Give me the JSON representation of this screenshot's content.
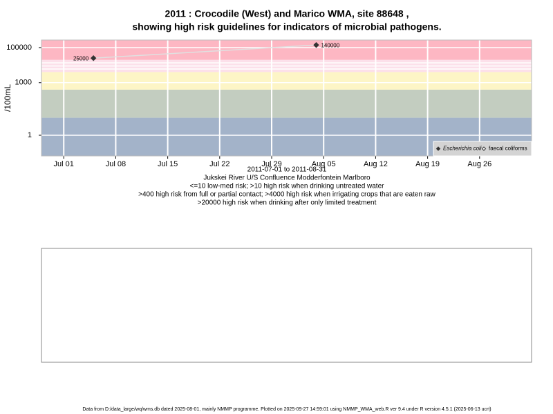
{
  "chart_data": {
    "type": "line",
    "title": "2011 : Crocodile (West) and Marico WMA, site 88648 ,",
    "subtitle": "showing high risk guidelines for indicators of microbial pathogens.",
    "y_label": "/100mL",
    "log_y": true,
    "grid": true,
    "legend": "bottom-right",
    "x": [
      "2011-07-05",
      "2011-08-04"
    ],
    "series": [
      {
        "name": "Escherichia coli",
        "color": "#333333",
        "values": [
          25000,
          140000
        ]
      },
      {
        "name": "faecal coliforms",
        "color": "#333333",
        "values": [
          null,
          null
        ]
      }
    ],
    "xlim": [
      "2011-06-28",
      "2011-09-02"
    ],
    "xticks": [
      {
        "value": "2011-07-01",
        "label": "Jul 01"
      },
      {
        "value": "2011-07-08",
        "label": "Jul 08"
      },
      {
        "value": "2011-07-15",
        "label": "Jul 15"
      },
      {
        "value": "2011-07-22",
        "label": "Jul 22"
      },
      {
        "value": "2011-07-29",
        "label": "Jul 29"
      },
      {
        "value": "2011-08-05",
        "label": "Aug 05"
      },
      {
        "value": "2011-08-12",
        "label": "Aug 12"
      },
      {
        "value": "2011-08-19",
        "label": "Aug 19"
      },
      {
        "value": "2011-08-26",
        "label": "Aug 26"
      }
    ],
    "ylim": [
      0.066,
      270000
    ],
    "yticks": [
      1,
      1000,
      100000
    ],
    "band_edges": [
      10,
      400,
      4000,
      20000
    ],
    "band_colors": [
      "#a3b3c9",
      "#c3cdc0",
      "#fdf5c6",
      "#fce0ea",
      "#fdb7c3"
    ],
    "notes": [
      "2011-07-01 to 2011-08-31",
      "Jukskei River U/S Confluence Modderfontein Marlboro",
      "<=10 low-med risk; >10 high risk when drinking untreated water",
      ">400 high risk from full or partial contact; >4000 high risk when irrigating crops that are eaten raw",
      ">20000 high risk when drinking after only limited treatment"
    ],
    "footer": "Data from D:/data_large/wq/wms.db dated 2025-08-01, mainly NMMP programme. Plotted on 2025-09-27 14:59:01 using NMMP_WMA_web.R ver 9.4 under R version 4.5.1 (2025-06-13 ucrt)"
  }
}
